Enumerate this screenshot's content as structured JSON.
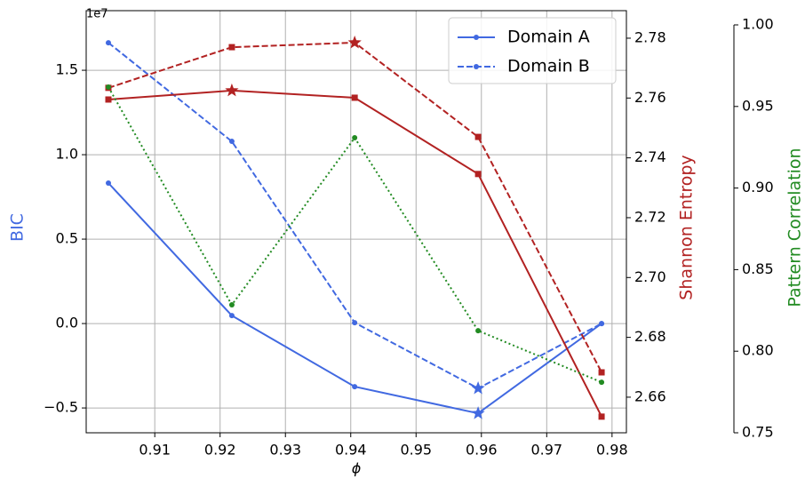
{
  "chart_data": {
    "type": "line",
    "x_label": "ϕ",
    "y_label": "BIC",
    "y2_label": "Shannon Entropy",
    "y3_label": "Pattern Correlation",
    "y_offset_label": "1e7",
    "x": [
      0.9029,
      0.9218,
      0.9406,
      0.9595,
      0.9784
    ],
    "xlim": [
      0.8995,
      0.9822
    ],
    "xticks": [
      0.91,
      0.92,
      0.93,
      0.94,
      0.95,
      0.96,
      0.97,
      0.98
    ],
    "ylim": [
      -6470000,
      18530000
    ],
    "yticks": [
      {
        "value": -5000000,
        "label": "−0.5"
      },
      {
        "value": 0,
        "label": "0.0"
      },
      {
        "value": 5000000,
        "label": "0.5"
      },
      {
        "value": 10000000,
        "label": "1.0"
      },
      {
        "value": 15000000,
        "label": "1.5"
      }
    ],
    "y2lim": [
      2.6481,
      2.7892
    ],
    "y2ticks": [
      2.66,
      2.68,
      {
        "value": 2.7,
        "label": "2.70"
      },
      2.72,
      2.74,
      2.76,
      2.78
    ],
    "y3lim": [
      0.75,
      1.0
    ],
    "y3ticks": [
      0.75,
      {
        "value": 0.8,
        "label": "0.80"
      },
      0.85,
      {
        "value": 0.9,
        "label": "0.90"
      },
      0.95,
      {
        "value": 1.0,
        "label": "1.00"
      }
    ],
    "grid": true,
    "legend": "upper right",
    "y_color": "#4169e1",
    "y2_color": "#b22222",
    "y3_color": "#228b22",
    "series": [
      {
        "name": "Domain A",
        "color": "#4169e1",
        "axis": "y",
        "dash": "solid",
        "marker": "circle",
        "star_index": 3,
        "values": [
          8320000,
          470000,
          -3740000,
          -5320000,
          0
        ]
      },
      {
        "name": "Domain B",
        "color": "#4169e1",
        "axis": "y",
        "dash": "dashed",
        "marker": "circle",
        "star_index": 3,
        "values": [
          16630000,
          10790000,
          50000,
          -3840000,
          0
        ]
      },
      {
        "color": "#b22222",
        "axis": "y2",
        "dash": "solid",
        "marker": "square",
        "star_index": 1,
        "values": [
          2.7595,
          2.7625,
          2.7601,
          2.7346,
          2.6535
        ]
      },
      {
        "color": "#b22222",
        "axis": "y2",
        "dash": "dashed",
        "marker": "square",
        "star_index": 2,
        "values": [
          2.7634,
          2.777,
          2.7785,
          2.747,
          2.6683
        ]
      },
      {
        "color": "#228b22",
        "axis": "y3",
        "dash": "dotted",
        "marker": "circle",
        "values": [
          0.9619,
          0.8284,
          0.9308,
          0.8126,
          0.781
        ]
      }
    ]
  }
}
